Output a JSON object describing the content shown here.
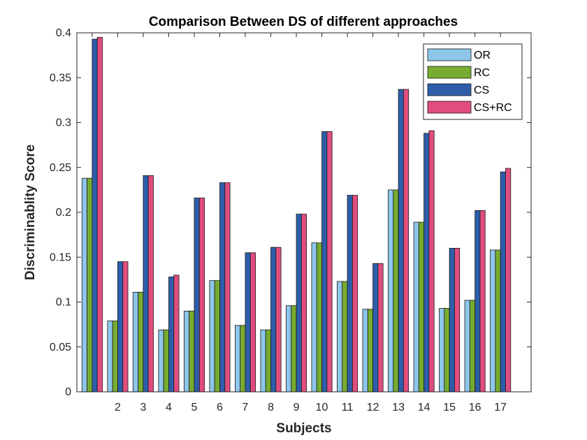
{
  "chart_data": {
    "type": "bar",
    "title": "Comparison Between DS of different approaches",
    "xlabel": "Subjects",
    "ylabel": "Discriminablity Score",
    "ylim": [
      0,
      0.4
    ],
    "yticks": [
      "0",
      "0.05",
      "0.1",
      "0.15",
      "0.2",
      "0.25",
      "0.3",
      "0.35",
      "0.4"
    ],
    "categories": [
      "",
      "2",
      "3",
      "4",
      "5",
      "6",
      "7",
      "8",
      "9",
      "10",
      "11",
      "12",
      "13",
      "14",
      "15",
      "16",
      "17"
    ],
    "series": [
      {
        "name": "OR",
        "color": "#8ec6ea",
        "values": [
          0.238,
          0.079,
          0.111,
          0.069,
          0.09,
          0.124,
          0.074,
          0.069,
          0.096,
          0.166,
          0.123,
          0.092,
          0.225,
          0.189,
          0.093,
          0.102,
          0.158
        ]
      },
      {
        "name": "RC",
        "color": "#77ac30",
        "values": [
          0.238,
          0.079,
          0.111,
          0.069,
          0.09,
          0.124,
          0.074,
          0.069,
          0.096,
          0.166,
          0.123,
          0.092,
          0.225,
          0.189,
          0.093,
          0.102,
          0.158
        ]
      },
      {
        "name": "CS",
        "color": "#2e5eaa",
        "values": [
          0.393,
          0.145,
          0.241,
          0.128,
          0.216,
          0.233,
          0.155,
          0.161,
          0.198,
          0.29,
          0.219,
          0.143,
          0.337,
          0.288,
          0.16,
          0.202,
          0.245
        ]
      },
      {
        "name": "CS+RC",
        "color": "#e04d7e",
        "values": [
          0.395,
          0.145,
          0.241,
          0.13,
          0.216,
          0.233,
          0.155,
          0.161,
          0.198,
          0.29,
          0.219,
          0.143,
          0.337,
          0.291,
          0.16,
          0.202,
          0.249
        ]
      }
    ],
    "legend_position": "top-right",
    "grid": false
  }
}
